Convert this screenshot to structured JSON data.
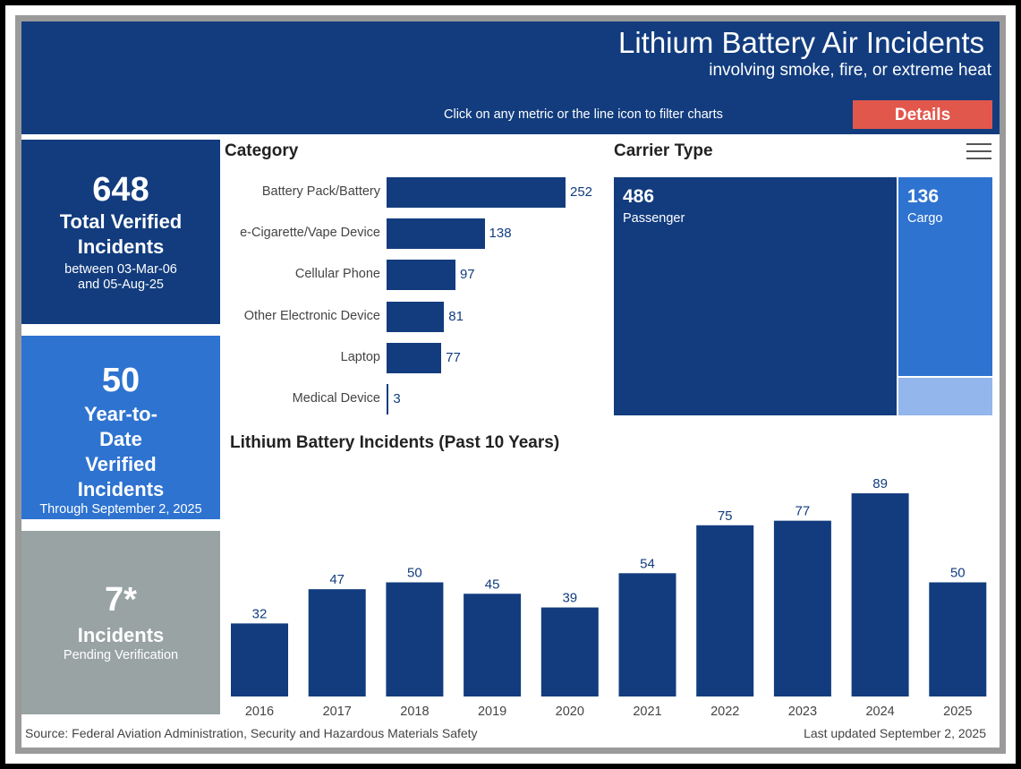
{
  "header": {
    "title": "Lithium Battery Air Incidents",
    "subtitle": "involving smoke, fire, or extreme heat",
    "hint": "Click on any metric or the line icon to filter charts",
    "details_label": "Details",
    "background_color": "#123c7e",
    "button_color": "#e2574c"
  },
  "metrics": {
    "total": {
      "value": "648",
      "label": "Total Verified Incidents",
      "sub1": "between 03-Mar-06",
      "sub2": "and 05-Aug-25",
      "color": "#123c7e"
    },
    "ytd": {
      "value": "50",
      "label": "Year-to-Date Verified Incidents",
      "sub1": "Through September 2, 2025",
      "color": "#2e73d0"
    },
    "pending": {
      "value": "7*",
      "label": "Incidents",
      "sub1": "Pending Verification",
      "color": "#99a3a4"
    }
  },
  "category": {
    "title": "Category",
    "items": [
      {
        "label": "Battery Pack/Battery",
        "value": 252
      },
      {
        "label": "e-Cigarette/Vape Device",
        "value": 138
      },
      {
        "label": "Cellular Phone",
        "value": 97
      },
      {
        "label": "Other Electronic Device",
        "value": 81
      },
      {
        "label": "Laptop",
        "value": 77
      },
      {
        "label": "Medical Device",
        "value": 3
      }
    ]
  },
  "carrier": {
    "title": "Carrier Type",
    "menu_icon": "hamburger-menu-icon",
    "passenger": {
      "value": "486",
      "label": "Passenger",
      "color": "#123c7e"
    },
    "cargo": {
      "value": "136",
      "label": "Cargo",
      "color": "#2e73d0"
    },
    "other_color": "#93b6ec"
  },
  "yearly": {
    "title": "Lithium Battery Incidents (Past 10 Years)"
  },
  "chart_data": [
    {
      "type": "bar",
      "orientation": "horizontal",
      "title": "Category",
      "categories": [
        "Battery Pack/Battery",
        "e-Cigarette/Vape Device",
        "Cellular Phone",
        "Other Electronic Device",
        "Laptop",
        "Medical Device"
      ],
      "values": [
        252,
        138,
        97,
        81,
        77,
        3
      ]
    },
    {
      "type": "bar",
      "title": "Lithium Battery Incidents (Past 10 Years)",
      "categories": [
        "2016",
        "2017",
        "2018",
        "2019",
        "2020",
        "2021",
        "2022",
        "2023",
        "2024",
        "2025"
      ],
      "values": [
        32,
        47,
        50,
        45,
        39,
        54,
        75,
        77,
        89,
        50
      ],
      "xlabel": "",
      "ylabel": "",
      "grid": false,
      "color": "#123c7e"
    }
  ],
  "footer": {
    "source": "Source: Federal Aviation Administration, Security and Hazardous Materials Safety",
    "updated": "Last updated September 2, 2025"
  }
}
